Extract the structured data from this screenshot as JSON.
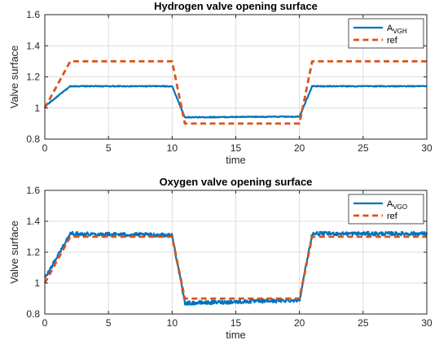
{
  "colors": {
    "measured": "#0072BD",
    "reference": "#D95319",
    "grid": "#DCDCDC",
    "axis": "#262626"
  },
  "chart_data": [
    {
      "type": "line",
      "title": "Hydrogen valve opening surface",
      "xlabel": "time",
      "ylabel": "Valve surface",
      "xlim": [
        0,
        30
      ],
      "ylim": [
        0.8,
        1.6
      ],
      "xticks": [
        "0",
        "5",
        "10",
        "15",
        "20",
        "25",
        "30"
      ],
      "yticks": [
        "0.8",
        "1",
        "1.2",
        "1.4",
        "1.6"
      ],
      "grid": true,
      "legend_position": "top-right",
      "series": [
        {
          "name": "A",
          "name_subscript": "VGH",
          "style": "solid",
          "noise": 0.003,
          "x": [
            0,
            2,
            10,
            11,
            20,
            21,
            30
          ],
          "y": [
            1.01,
            1.14,
            1.14,
            0.94,
            0.945,
            1.14,
            1.14
          ]
        },
        {
          "name": "ref",
          "style": "dashed",
          "x": [
            0,
            2,
            10,
            11,
            20,
            21,
            30
          ],
          "y": [
            1.0,
            1.3,
            1.3,
            0.9,
            0.9,
            1.3,
            1.3
          ]
        }
      ]
    },
    {
      "type": "line",
      "title": "Oxygen valve opening surface",
      "xlabel": "time",
      "ylabel": "Valve surface",
      "xlim": [
        0,
        30
      ],
      "ylim": [
        0.8,
        1.6
      ],
      "xticks": [
        "0",
        "5",
        "10",
        "15",
        "20",
        "25",
        "30"
      ],
      "yticks": [
        "0.8",
        "1",
        "1.2",
        "1.4",
        "1.6"
      ],
      "grid": true,
      "legend_position": "top-right",
      "series": [
        {
          "name": "A",
          "name_subscript": "VGO",
          "style": "solid",
          "noise": 0.012,
          "x": [
            0,
            2,
            10,
            11,
            20,
            21,
            30
          ],
          "y": [
            1.03,
            1.32,
            1.31,
            0.87,
            0.89,
            1.32,
            1.32
          ]
        },
        {
          "name": "ref",
          "style": "dashed",
          "x": [
            0,
            2,
            10,
            11,
            20,
            21,
            30
          ],
          "y": [
            1.0,
            1.3,
            1.3,
            0.9,
            0.9,
            1.3,
            1.3
          ]
        }
      ]
    }
  ]
}
